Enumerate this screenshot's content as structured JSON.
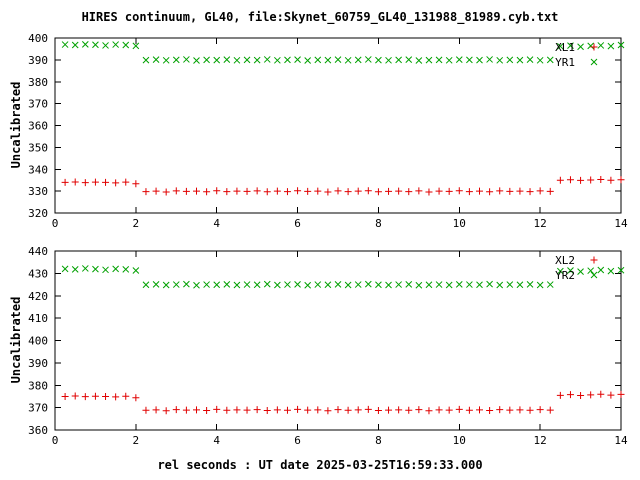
{
  "title": "HIRES continuum, GL40, file:Skynet_60759_GL40_131988_81989.cyb.txt",
  "xlabel": "rel seconds : UT date 2025-03-25T16:59:33.000",
  "colors": {
    "red": "#e00000",
    "green": "#00a000",
    "axis": "#000000"
  },
  "chart_data": [
    {
      "type": "scatter",
      "panel": "top",
      "ylabel": "Uncalibrated",
      "xlim": [
        0,
        14
      ],
      "ylim": [
        320,
        400
      ],
      "xticks": [
        0,
        2,
        4,
        6,
        8,
        10,
        12,
        14
      ],
      "yticks": [
        320,
        330,
        340,
        350,
        360,
        370,
        380,
        390,
        400
      ],
      "grid": false,
      "legend_position": "top-right",
      "x": [
        0.25,
        0.5,
        0.75,
        1.0,
        1.25,
        1.5,
        1.75,
        2.0,
        2.25,
        2.5,
        2.75,
        3.0,
        3.25,
        3.5,
        3.75,
        4.0,
        4.25,
        4.5,
        4.75,
        5.0,
        5.25,
        5.5,
        5.75,
        6.0,
        6.25,
        6.5,
        6.75,
        7.0,
        7.25,
        7.5,
        7.75,
        8.0,
        8.25,
        8.5,
        8.75,
        9.0,
        9.25,
        9.5,
        9.75,
        10.0,
        10.25,
        10.5,
        10.75,
        11.0,
        11.25,
        11.5,
        11.75,
        12.0,
        12.25,
        12.5,
        12.75,
        13.0,
        13.25,
        13.5,
        13.75,
        14.0
      ],
      "series": [
        {
          "name": "XL1",
          "marker": "plus",
          "color": "red",
          "values": [
            334.0,
            334.2,
            333.9,
            334.1,
            334.0,
            333.8,
            334.1,
            333.4,
            329.8,
            330.0,
            329.6,
            330.1,
            329.9,
            330.0,
            329.7,
            330.2,
            329.8,
            330.0,
            329.9,
            330.1,
            329.7,
            330.0,
            329.8,
            330.2,
            329.9,
            330.0,
            329.6,
            330.1,
            329.8,
            330.0,
            330.2,
            329.7,
            329.9,
            330.0,
            329.8,
            330.1,
            329.6,
            330.0,
            329.9,
            330.2,
            329.8,
            330.0,
            329.7,
            330.1,
            329.9,
            330.0,
            329.8,
            330.1,
            329.9,
            335.0,
            335.2,
            334.9,
            335.1,
            335.3,
            335.0,
            335.2
          ]
        },
        {
          "name": "YR1",
          "marker": "cross",
          "color": "green",
          "values": [
            397.0,
            396.8,
            397.1,
            396.9,
            396.6,
            397.0,
            396.8,
            396.4,
            389.9,
            390.1,
            389.8,
            390.0,
            390.2,
            389.7,
            390.0,
            389.9,
            390.1,
            389.8,
            390.0,
            389.9,
            390.2,
            389.8,
            390.0,
            390.1,
            389.7,
            390.0,
            389.9,
            390.1,
            389.8,
            390.0,
            390.2,
            389.9,
            389.8,
            390.0,
            390.1,
            389.7,
            389.9,
            390.0,
            389.8,
            390.1,
            390.0,
            389.9,
            390.2,
            389.8,
            390.0,
            389.9,
            390.1,
            389.8,
            390.0,
            396.2,
            396.5,
            396.0,
            396.4,
            396.6,
            396.3,
            396.8
          ]
        }
      ]
    },
    {
      "type": "scatter",
      "panel": "bottom",
      "ylabel": "Uncalibrated",
      "xlim": [
        0,
        14
      ],
      "ylim": [
        360,
        440
      ],
      "xticks": [
        0,
        2,
        4,
        6,
        8,
        10,
        12,
        14
      ],
      "yticks": [
        360,
        370,
        380,
        390,
        400,
        410,
        420,
        430,
        440
      ],
      "grid": false,
      "legend_position": "top-right",
      "x": [
        0.25,
        0.5,
        0.75,
        1.0,
        1.25,
        1.5,
        1.75,
        2.0,
        2.25,
        2.5,
        2.75,
        3.0,
        3.25,
        3.5,
        3.75,
        4.0,
        4.25,
        4.5,
        4.75,
        5.0,
        5.25,
        5.5,
        5.75,
        6.0,
        6.25,
        6.5,
        6.75,
        7.0,
        7.25,
        7.5,
        7.75,
        8.0,
        8.25,
        8.5,
        8.75,
        9.0,
        9.25,
        9.5,
        9.75,
        10.0,
        10.25,
        10.5,
        10.75,
        11.0,
        11.25,
        11.5,
        11.75,
        12.0,
        12.25,
        12.5,
        12.75,
        13.0,
        13.25,
        13.5,
        13.75,
        14.0
      ],
      "series": [
        {
          "name": "XL2",
          "marker": "plus",
          "color": "red",
          "values": [
            375.0,
            375.2,
            374.9,
            375.1,
            375.0,
            374.8,
            375.1,
            374.4,
            368.8,
            369.0,
            368.6,
            369.1,
            368.9,
            369.0,
            368.7,
            369.2,
            368.8,
            369.0,
            368.9,
            369.1,
            368.7,
            369.0,
            368.8,
            369.2,
            368.9,
            369.0,
            368.6,
            369.1,
            368.8,
            369.0,
            369.2,
            368.7,
            368.9,
            369.0,
            368.8,
            369.1,
            368.6,
            369.0,
            368.9,
            369.2,
            368.8,
            369.0,
            368.7,
            369.1,
            368.9,
            369.0,
            368.8,
            369.1,
            368.9,
            375.5,
            375.8,
            375.4,
            375.7,
            376.0,
            375.6,
            375.9
          ]
        },
        {
          "name": "YR2",
          "marker": "cross",
          "color": "green",
          "values": [
            432.0,
            431.8,
            432.2,
            431.9,
            431.6,
            432.0,
            431.8,
            431.3,
            424.9,
            425.1,
            424.8,
            425.0,
            425.2,
            424.7,
            425.0,
            424.9,
            425.1,
            424.8,
            425.0,
            424.9,
            425.2,
            424.8,
            425.0,
            425.1,
            424.7,
            425.0,
            424.9,
            425.1,
            424.8,
            425.0,
            425.2,
            424.9,
            424.8,
            425.0,
            425.1,
            424.7,
            424.9,
            425.0,
            424.8,
            425.1,
            425.0,
            424.9,
            425.2,
            424.8,
            425.0,
            424.9,
            425.1,
            424.8,
            425.0,
            431.0,
            431.3,
            430.8,
            431.2,
            431.5,
            431.0,
            431.4
          ]
        }
      ]
    }
  ]
}
